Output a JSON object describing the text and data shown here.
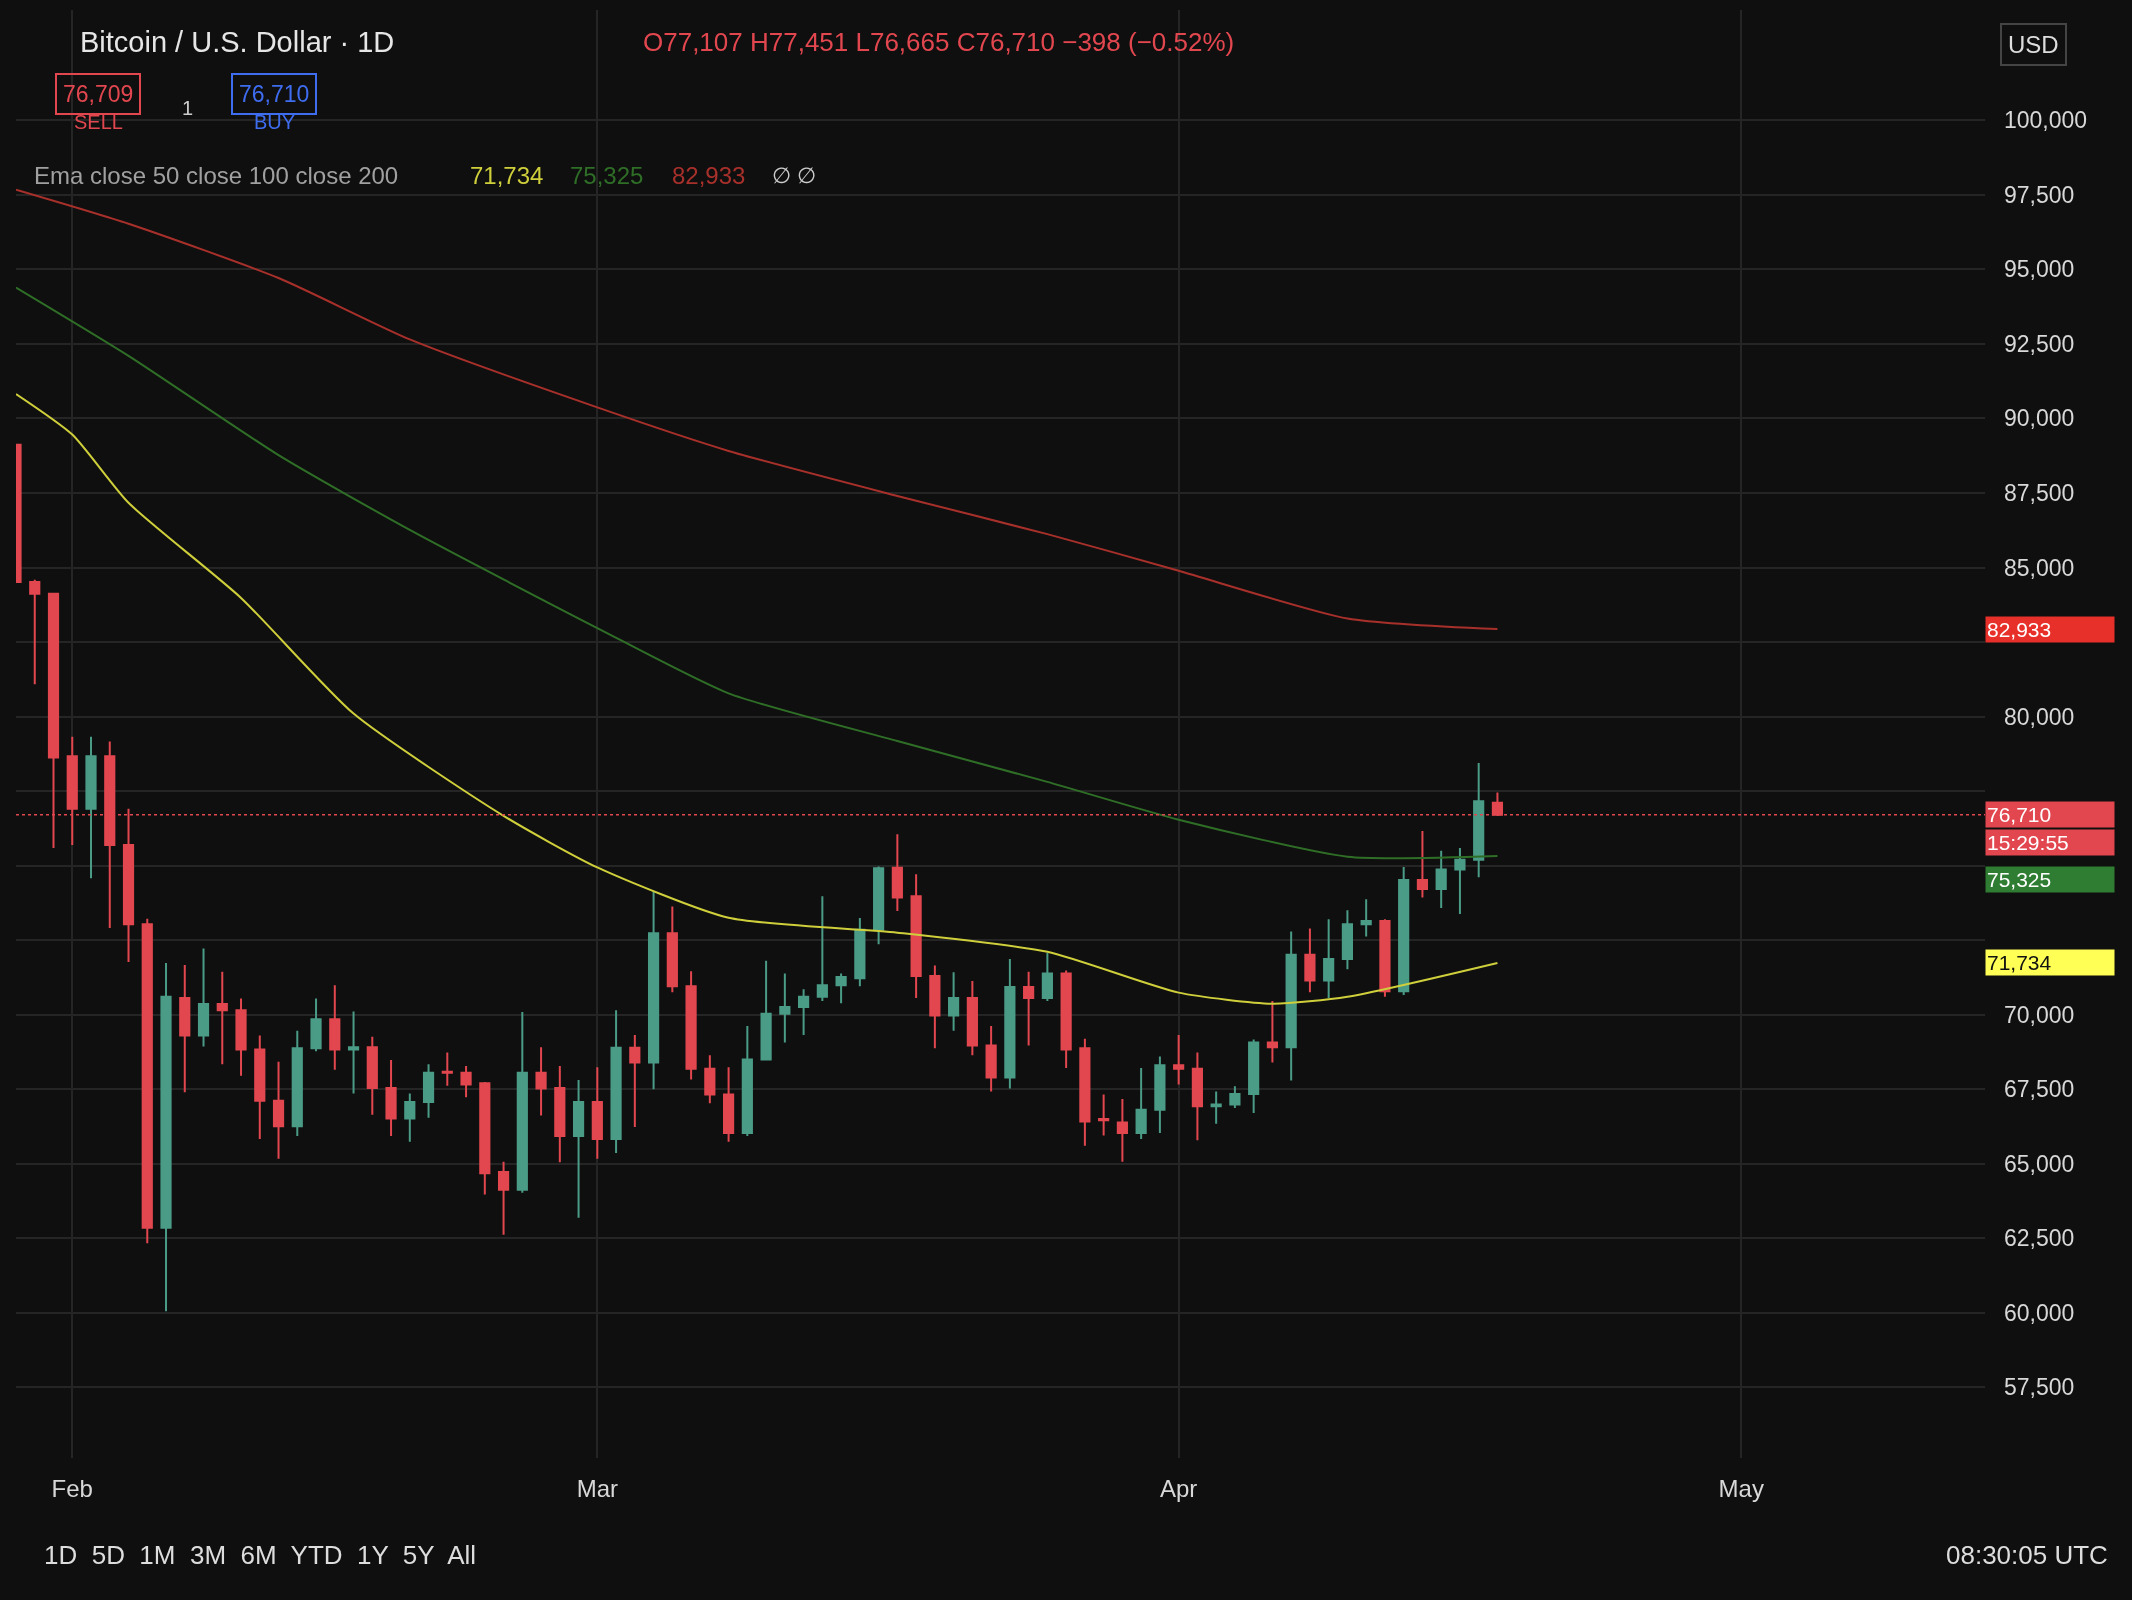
{
  "chart_data": {
    "type": "candlestick",
    "title": "Bitcoin / U.S. Dollar · 1D",
    "x": [
      "--01-29",
      "--01-30",
      "--01-31",
      "--02-01",
      "--02-02",
      "--02-03",
      "--02-04",
      "--02-05",
      "--02-06",
      "--02-07",
      "--02-08",
      "--02-09",
      "--02-10",
      "--02-11",
      "--02-12",
      "--02-13",
      "--02-14",
      "--02-15",
      "--02-16",
      "--02-17",
      "--02-18",
      "--02-19",
      "--02-20",
      "--02-21",
      "--02-22",
      "--02-23",
      "--02-24",
      "--02-25",
      "--02-26",
      "--02-27",
      "--02-28",
      "--03-01",
      "--03-02",
      "--03-03",
      "--03-04",
      "--03-05",
      "--03-06",
      "--03-07",
      "--03-08",
      "--03-09",
      "--03-10",
      "--03-11",
      "--03-12",
      "--03-13",
      "--03-14",
      "--03-15",
      "--03-16",
      "--03-17",
      "--03-18",
      "--03-19",
      "--03-20",
      "--03-21",
      "--03-22",
      "--03-23",
      "--03-24",
      "--03-25",
      "--03-26",
      "--03-27",
      "--03-28",
      "--03-29",
      "--03-30",
      "--03-31",
      "--04-01",
      "--04-02",
      "--04-03",
      "--04-04",
      "--04-05",
      "--04-06",
      "--04-07",
      "--04-08",
      "--04-09",
      "--04-10",
      "--04-11",
      "--04-12",
      "--04-13",
      "--04-14",
      "--04-15",
      "--04-16",
      "--04-17",
      "--04-18"
    ],
    "ohlc": [
      [
        89120,
        89120,
        84510,
        84510
      ],
      [
        84510,
        84590,
        81080,
        84120
      ],
      [
        84120,
        84120,
        75590,
        78630
      ],
      [
        78670,
        79320,
        75690,
        76910
      ],
      [
        76910,
        79320,
        74580,
        78670
      ],
      [
        78670,
        79160,
        72910,
        75690
      ],
      [
        75690,
        76910,
        71770,
        73030
      ],
      [
        73030,
        73220,
        62330,
        62850
      ],
      [
        62850,
        71730,
        60050,
        70600
      ],
      [
        70560,
        71670,
        67400,
        69300
      ],
      [
        69300,
        72220,
        68930,
        70360
      ],
      [
        70360,
        71440,
        68340,
        70150
      ],
      [
        70150,
        70540,
        67950,
        68830
      ],
      [
        68830,
        69300,
        65830,
        67110
      ],
      [
        67110,
        68420,
        65170,
        66260
      ],
      [
        66260,
        69460,
        65930,
        68870
      ],
      [
        68870,
        70540,
        68770,
        69850
      ],
      [
        69850,
        70990,
        68150,
        68830
      ],
      [
        68830,
        70110,
        67360,
        68910
      ],
      [
        68910,
        69260,
        66640,
        67540
      ],
      [
        67540,
        68480,
        65930,
        66520
      ],
      [
        66520,
        67360,
        65740,
        67070
      ],
      [
        67070,
        68340,
        66540,
        68050
      ],
      [
        68090,
        68730,
        67620,
        68050
      ],
      [
        68050,
        68280,
        67230,
        67660
      ],
      [
        67700,
        67740,
        63970,
        64680
      ],
      [
        64720,
        65070,
        62620,
        64130
      ],
      [
        64130,
        70090,
        64030,
        68050
      ],
      [
        68050,
        68910,
        66620,
        67520
      ],
      [
        67540,
        68280,
        65050,
        65930
      ],
      [
        65930,
        67810,
        63190,
        67070
      ],
      [
        67070,
        68240,
        65170,
        65830
      ],
      [
        65830,
        70150,
        65360,
        68890
      ],
      [
        68890,
        69320,
        66230,
        68400
      ],
      [
        68400,
        74120,
        67500,
        72730
      ],
      [
        72730,
        73630,
        70750,
        70950
      ],
      [
        70950,
        71460,
        67830,
        68190
      ],
      [
        68190,
        68640,
        67030,
        67320
      ],
      [
        67320,
        68240,
        65740,
        66030
      ],
      [
        66030,
        69620,
        65930,
        68500
      ],
      [
        68500,
        71810,
        68460,
        70030
      ],
      [
        70030,
        71380,
        69070,
        70260
      ],
      [
        70260,
        70850,
        69320,
        70600
      ],
      [
        70600,
        73970,
        70460,
        70990
      ],
      [
        70990,
        71380,
        70380,
        71260
      ],
      [
        71220,
        73240,
        70950,
        72850
      ],
      [
        72850,
        74970,
        72360,
        74910
      ],
      [
        74930,
        76050,
        73480,
        73930
      ],
      [
        73970,
        74710,
        70560,
        71300
      ],
      [
        71300,
        71650,
        68870,
        69970
      ],
      [
        69970,
        71420,
        69460,
        70560
      ],
      [
        70560,
        71130,
        68640,
        68970
      ],
      [
        68970,
        69620,
        67420,
        67890
      ],
      [
        67890,
        71870,
        67520,
        70930
      ],
      [
        70930,
        71440,
        68970,
        70560
      ],
      [
        70560,
        72070,
        70460,
        71380
      ],
      [
        71380,
        71480,
        68210,
        68830
      ],
      [
        68870,
        69190,
        65600,
        66420
      ],
      [
        66500,
        67320,
        65950,
        66460
      ],
      [
        66380,
        67170,
        65070,
        66030
      ],
      [
        66030,
        68210,
        65830,
        66810
      ],
      [
        66810,
        68600,
        66030,
        68300
      ],
      [
        68300,
        69320,
        67660,
        68190
      ],
      [
        68190,
        68730,
        65790,
        66930
      ],
      [
        66930,
        67420,
        66340,
        66990
      ],
      [
        66990,
        67600,
        66870,
        67340
      ],
      [
        67340,
        69170,
        66700,
        69070
      ],
      [
        69070,
        70460,
        68400,
        68910
      ],
      [
        68910,
        72790,
        67790,
        72010
      ],
      [
        72010,
        72890,
        70750,
        71150
      ],
      [
        71150,
        73200,
        70560,
        71870
      ],
      [
        71870,
        73500,
        71520,
        73030
      ],
      [
        73030,
        73870,
        72620,
        73140
      ],
      [
        73140,
        73200,
        70600,
        70790
      ],
      [
        70790,
        74950,
        70660,
        74520
      ],
      [
        74520,
        76160,
        73930,
        74220
      ],
      [
        74220,
        75500,
        73580,
        74870
      ],
      [
        74870,
        75590,
        73380,
        75200
      ],
      [
        75200,
        78440,
        74610,
        77160
      ],
      [
        77107,
        77451,
        76665,
        76710
      ]
    ],
    "series": [
      {
        "type": "line",
        "color": "#cfcf3c",
        "x": [
          "--01-29",
          "--02-01",
          "--02-04",
          "--02-10",
          "--02-16",
          "--02-24",
          "--03-01",
          "--03-08",
          "--03-17",
          "--03-25",
          "--04-01",
          "--04-06",
          "--04-10",
          "--04-18"
        ],
        "values": [
          90820,
          89460,
          87170,
          83980,
          80100,
          76670,
          74940,
          73250,
          72750,
          72110,
          70740,
          70370,
          70600,
          71734
        ]
      },
      {
        "type": "line",
        "color": "#2f6e27",
        "x": [
          "--01-29",
          "--02-04",
          "--02-12",
          "--02-19",
          "--03-01",
          "--03-08",
          "--03-17",
          "--03-25",
          "--04-01",
          "--04-10",
          "--04-18"
        ],
        "values": [
          94390,
          92100,
          88770,
          86260,
          82970,
          80780,
          79180,
          77810,
          76540,
          75300,
          75325
        ]
      },
      {
        "type": "line",
        "color": "#a8302b",
        "x": [
          "--01-29",
          "--02-04",
          "--02-12",
          "--02-19",
          "--03-01",
          "--03-08",
          "--03-17",
          "--03-25",
          "--04-01",
          "--04-10",
          "--04-18"
        ],
        "values": [
          97670,
          96530,
          94710,
          92650,
          90370,
          88910,
          87400,
          86120,
          84890,
          83290,
          82933
        ]
      }
    ],
    "xlim": [
      "--01-29",
      "--05-14"
    ],
    "xticks": [
      {
        "value": "--02-01",
        "label": "Feb"
      },
      {
        "value": "--03-01",
        "label": "Mar"
      },
      {
        "value": "--04-01",
        "label": "Apr"
      },
      {
        "value": "--05-01",
        "label": "May"
      }
    ],
    "ylim": [
      55130,
      103700
    ],
    "yticks": [
      {
        "value": 57500,
        "label": "57,500"
      },
      {
        "value": 60000,
        "label": "60,000"
      },
      {
        "value": 62500,
        "label": "62,500"
      },
      {
        "value": 65000,
        "label": "65,000"
      },
      {
        "value": 67500,
        "label": "67,500"
      },
      {
        "value": 70000,
        "label": "70,000"
      },
      {
        "value": 72500,
        "label": null
      },
      {
        "value": 75000,
        "label": null
      },
      {
        "value": 77500,
        "label": null
      },
      {
        "value": 80000,
        "label": "80,000"
      },
      {
        "value": 82500,
        "label": null
      },
      {
        "value": 85000,
        "label": "85,000"
      },
      {
        "value": 87500,
        "label": "87,500"
      },
      {
        "value": 90000,
        "label": "90,000"
      },
      {
        "value": 92500,
        "label": "92,500"
      },
      {
        "value": 95000,
        "label": "95,000"
      },
      {
        "value": 97500,
        "label": "97,500"
      },
      {
        "value": 100000,
        "label": "100,000"
      }
    ],
    "grid": true,
    "ref_lines": [
      {
        "axis": "y",
        "value": 76710,
        "label": "76,710",
        "color": "#e2474f",
        "line_style": "dotted"
      }
    ],
    "annotations": [
      "O77,107 H77,451 L76,665 C76,710 −398 (−0.52%)",
      "76,709",
      "SELL",
      "1",
      "76,710",
      "BUY",
      "Ema close 50 close 100 close 200",
      "71,734",
      "75,325",
      "82,933",
      "∅ ∅",
      "USD",
      "1D  5D  1M  3M  6M  YTD  1Y  5Y  All",
      "08:30:05 UTC",
      "15:29:55",
      "82,933",
      "75,325",
      "71,734"
    ]
  }
}
